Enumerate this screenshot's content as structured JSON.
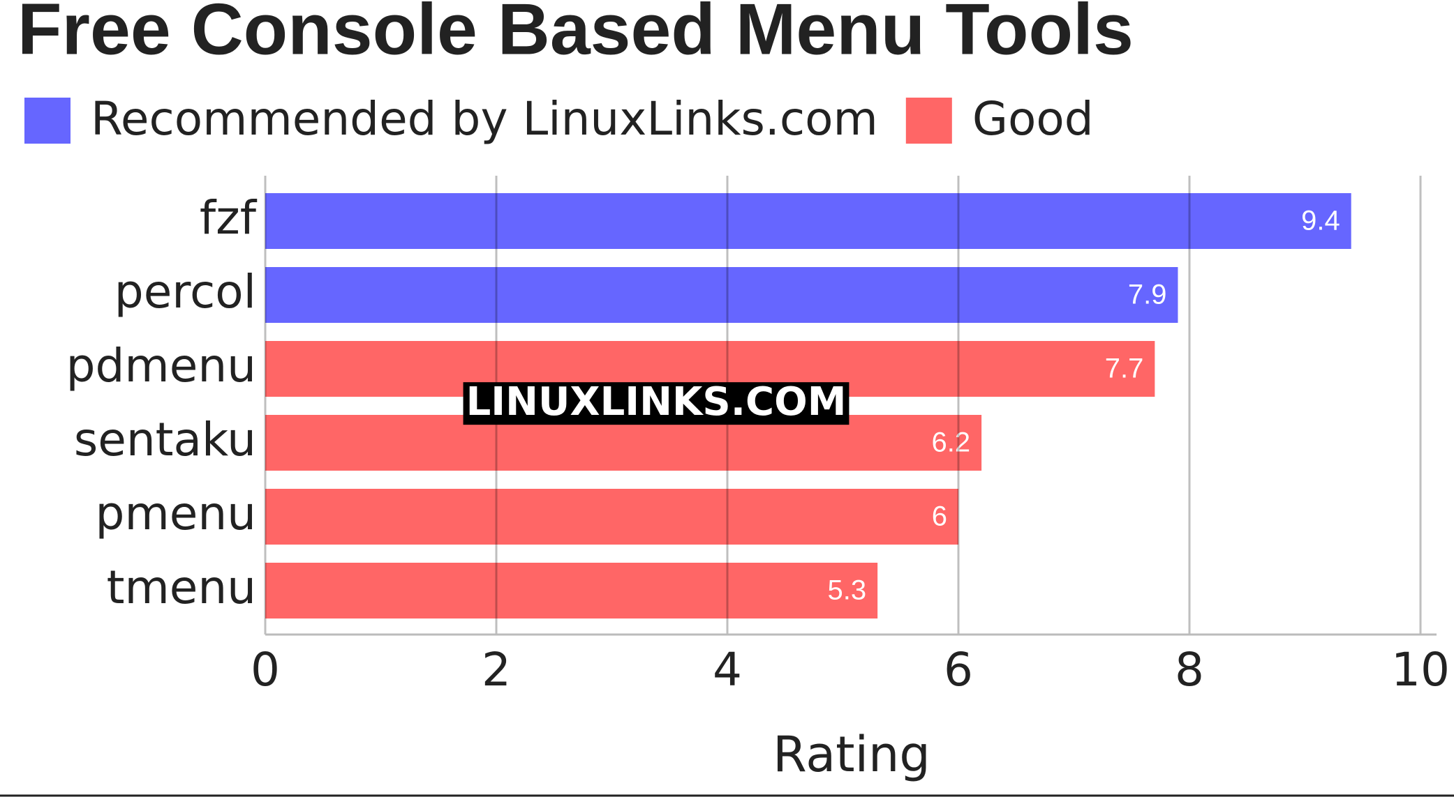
{
  "chart_data": {
    "type": "bar",
    "orientation": "horizontal",
    "title": "Free Console Based Menu Tools",
    "categories": [
      "fzf",
      "percol",
      "pdmenu",
      "sentaku",
      "pmenu",
      "tmenu"
    ],
    "series": [
      {
        "name": "Recommended by LinuxLinks.com",
        "color": "#6666ff",
        "values": [
          9.4,
          7.9,
          null,
          null,
          null,
          null
        ]
      },
      {
        "name": "Good",
        "color": "#ff6666",
        "values": [
          null,
          null,
          7.7,
          6.2,
          6,
          5.3
        ]
      }
    ],
    "xlabel": "Rating",
    "xlim": [
      0,
      10
    ],
    "xticks": [
      0,
      2,
      4,
      6,
      8,
      10
    ],
    "grid": true,
    "watermark": "LINUXLINKS.COM"
  }
}
